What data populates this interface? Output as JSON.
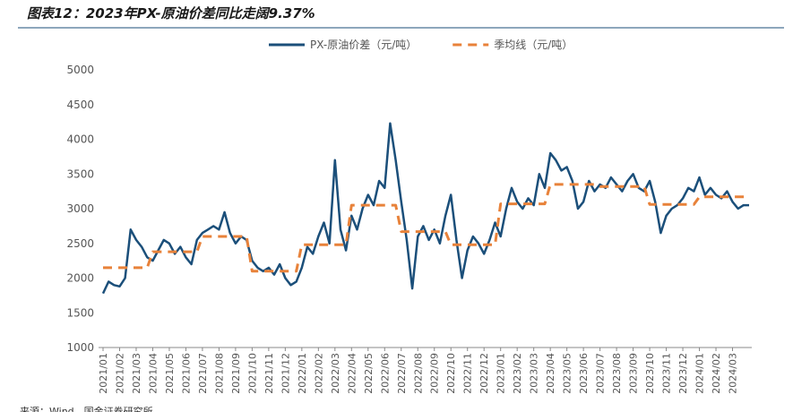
{
  "chart_data": {
    "type": "line",
    "title": "图表12：2023年PX-原油价差同比走阔9.37%",
    "source": "来源：Wind，国金证券研究所",
    "categories": [
      "2021/01",
      null,
      null,
      "2021/02",
      null,
      null,
      "2021/03",
      null,
      null,
      "2021/04",
      null,
      null,
      "2021/05",
      null,
      null,
      "2021/06",
      null,
      null,
      "2021/07",
      null,
      null,
      "2021/08",
      null,
      null,
      "2021/09",
      null,
      null,
      "2021/10",
      null,
      null,
      "2021/11",
      null,
      null,
      "2021/12",
      null,
      null,
      "2022/01",
      null,
      null,
      "2022/02",
      null,
      null,
      "2022/03",
      null,
      null,
      "2022/04",
      null,
      null,
      "2022/05",
      null,
      null,
      "2022/06",
      null,
      null,
      "2022/07",
      null,
      null,
      "2022/08",
      null,
      null,
      "2022/09",
      null,
      null,
      "2022/10",
      null,
      null,
      "2022/11",
      null,
      null,
      "2022/12",
      null,
      null,
      "2023/01",
      null,
      null,
      "2023/02",
      null,
      null,
      "2023/03",
      null,
      null,
      "2023/04",
      null,
      null,
      "2023/05",
      null,
      null,
      "2023/06",
      null,
      null,
      "2023/07",
      null,
      null,
      "2023/08",
      null,
      null,
      "2023/09",
      null,
      null,
      "2023/10",
      null,
      null,
      "2023/11",
      null,
      null,
      "2023/12",
      null,
      null,
      "2024/01",
      null,
      null,
      "2024/02",
      null,
      null,
      "2024/03",
      null,
      null,
      null
    ],
    "series": [
      {
        "name": "PX-原油价差（元/吨）",
        "color": "#1b4f7a",
        "style": "solid",
        "values": [
          1780,
          1950,
          1900,
          1880,
          2000,
          2700,
          2550,
          2450,
          2300,
          2250,
          2400,
          2550,
          2500,
          2350,
          2450,
          2300,
          2200,
          2550,
          2650,
          2700,
          2750,
          2700,
          2950,
          2650,
          2500,
          2600,
          2550,
          2250,
          2150,
          2100,
          2150,
          2050,
          2200,
          2000,
          1900,
          1950,
          2150,
          2450,
          2350,
          2600,
          2800,
          2500,
          3700,
          2700,
          2400,
          2900,
          2700,
          3000,
          3200,
          3050,
          3400,
          3300,
          4230,
          3700,
          3100,
          2550,
          1850,
          2600,
          2750,
          2550,
          2700,
          2500,
          2900,
          3200,
          2550,
          2000,
          2400,
          2600,
          2500,
          2350,
          2550,
          2800,
          2600,
          3000,
          3300,
          3100,
          3000,
          3150,
          3050,
          3500,
          3300,
          3800,
          3700,
          3550,
          3600,
          3400,
          3000,
          3100,
          3400,
          3250,
          3350,
          3300,
          3450,
          3350,
          3250,
          3400,
          3500,
          3300,
          3250,
          3400,
          3100,
          2650,
          2900,
          3000,
          3050,
          3150,
          3300,
          3250,
          3450,
          3200,
          3300,
          3200,
          3150,
          3250,
          3100,
          3000,
          3050,
          3050
        ]
      },
      {
        "name": "季均线（元/吨）",
        "color": "#e8823a",
        "style": "dashed",
        "values": [
          2150,
          2150,
          2150,
          2150,
          2150,
          2150,
          2150,
          2150,
          2150,
          2380,
          2380,
          2380,
          2380,
          2380,
          2380,
          2380,
          2380,
          2380,
          2600,
          2600,
          2600,
          2600,
          2600,
          2600,
          2600,
          2600,
          2600,
          2100,
          2100,
          2100,
          2100,
          2100,
          2100,
          2100,
          2100,
          2100,
          2480,
          2480,
          2480,
          2480,
          2480,
          2480,
          2480,
          2480,
          2480,
          3050,
          3050,
          3050,
          3050,
          3050,
          3050,
          3050,
          3050,
          3050,
          2670,
          2670,
          2670,
          2670,
          2670,
          2670,
          2670,
          2670,
          2670,
          2480,
          2480,
          2480,
          2480,
          2480,
          2480,
          2480,
          2480,
          2480,
          3070,
          3070,
          3070,
          3070,
          3070,
          3070,
          3070,
          3070,
          3070,
          3350,
          3350,
          3350,
          3350,
          3350,
          3350,
          3350,
          3350,
          3350,
          3320,
          3320,
          3320,
          3320,
          3320,
          3320,
          3320,
          3320,
          3320,
          3060,
          3060,
          3060,
          3060,
          3060,
          3060,
          3060,
          3060,
          3060,
          3170,
          3170,
          3170,
          3170,
          3170,
          3170,
          3170,
          3170,
          3170,
          3170
        ]
      }
    ],
    "ylim": [
      1000,
      5000
    ],
    "yticks": [
      1000,
      1500,
      2000,
      2500,
      3000,
      3500,
      4000,
      4500,
      5000
    ],
    "legend": "top"
  }
}
